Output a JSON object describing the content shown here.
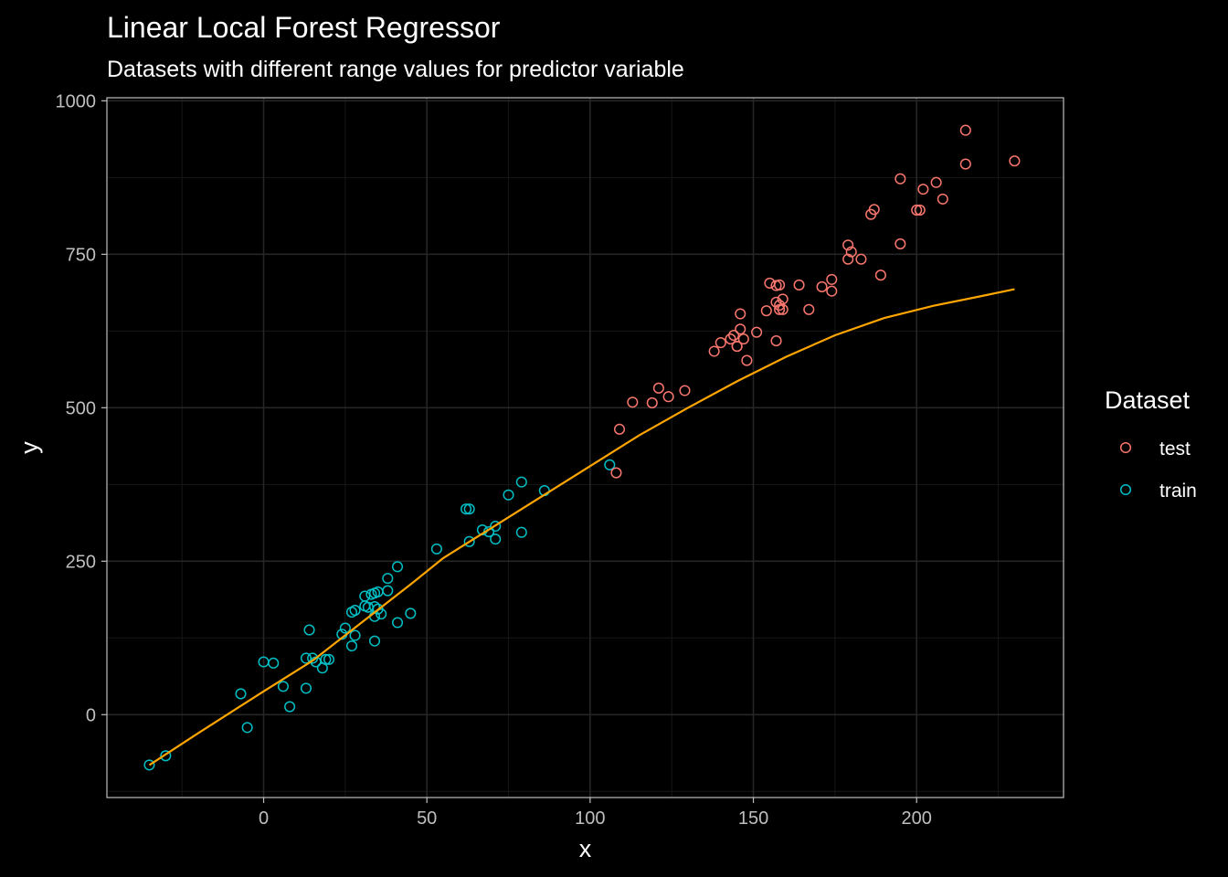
{
  "chart_data": {
    "type": "scatter",
    "title": "Linear Local Forest Regressor",
    "subtitle": "Datasets with different range values for predictor variable",
    "xlabel": "x",
    "ylabel": "y",
    "xlim": [
      -48,
      245
    ],
    "ylim": [
      -135,
      1005
    ],
    "x_ticks": [
      0,
      50,
      100,
      150,
      200
    ],
    "x_tick_labels": [
      "0",
      "50",
      "100",
      "150",
      "200"
    ],
    "y_ticks": [
      0,
      250,
      500,
      750,
      1000
    ],
    "y_tick_labels": [
      "0",
      "250",
      "500",
      "750",
      "1000"
    ],
    "x_minor_ticks": [
      -25,
      25,
      75,
      125,
      175,
      225
    ],
    "y_minor_ticks": [
      125,
      375,
      625,
      875,
      -125
    ],
    "grid": true,
    "legend": {
      "title": "Dataset",
      "position": "right",
      "entries": [
        {
          "label": "test",
          "color": "#F8766D"
        },
        {
          "label": "train",
          "color": "#00BFC4"
        }
      ]
    },
    "series": [
      {
        "name": "train",
        "kind": "points",
        "color": "#00BFC4",
        "points": [
          [
            -35,
            -82
          ],
          [
            -30,
            -67
          ],
          [
            -7,
            34
          ],
          [
            -5,
            -21
          ],
          [
            0,
            86
          ],
          [
            3,
            84
          ],
          [
            6,
            46
          ],
          [
            8,
            13
          ],
          [
            13,
            92
          ],
          [
            13,
            43
          ],
          [
            14,
            138
          ],
          [
            15,
            92
          ],
          [
            16,
            86
          ],
          [
            18,
            76
          ],
          [
            19,
            90
          ],
          [
            20,
            90
          ],
          [
            24,
            131
          ],
          [
            25,
            141
          ],
          [
            27,
            167
          ],
          [
            27,
            112
          ],
          [
            28,
            170
          ],
          [
            28,
            129
          ],
          [
            31,
            193
          ],
          [
            31,
            177
          ],
          [
            32,
            175
          ],
          [
            33,
            196
          ],
          [
            34,
            198
          ],
          [
            34,
            120
          ],
          [
            34,
            176
          ],
          [
            34,
            160
          ],
          [
            35,
            172
          ],
          [
            35,
            200
          ],
          [
            36,
            164
          ],
          [
            38,
            222
          ],
          [
            38,
            202
          ],
          [
            41,
            241
          ],
          [
            41,
            150
          ],
          [
            45,
            165
          ],
          [
            53,
            270
          ],
          [
            62,
            335
          ],
          [
            63,
            335
          ],
          [
            63,
            282
          ],
          [
            67,
            301
          ],
          [
            69,
            298
          ],
          [
            71,
            286
          ],
          [
            71,
            307
          ],
          [
            75,
            358
          ],
          [
            79,
            379
          ],
          [
            79,
            297
          ],
          [
            86,
            365
          ],
          [
            106,
            407
          ]
        ]
      },
      {
        "name": "test",
        "kind": "points",
        "color": "#F8766D",
        "points": [
          [
            108,
            394
          ],
          [
            109,
            465
          ],
          [
            113,
            509
          ],
          [
            119,
            508
          ],
          [
            121,
            532
          ],
          [
            124,
            518
          ],
          [
            129,
            528
          ],
          [
            138,
            592
          ],
          [
            140,
            606
          ],
          [
            143,
            612
          ],
          [
            144,
            618
          ],
          [
            145,
            600
          ],
          [
            145,
            600
          ],
          [
            146,
            628
          ],
          [
            146,
            653
          ],
          [
            147,
            612
          ],
          [
            148,
            577
          ],
          [
            151,
            623
          ],
          [
            154,
            658
          ],
          [
            155,
            703
          ],
          [
            157,
            672
          ],
          [
            157,
            699
          ],
          [
            157,
            609
          ],
          [
            158,
            660
          ],
          [
            158,
            700
          ],
          [
            158,
            667
          ],
          [
            159,
            677
          ],
          [
            159,
            660
          ],
          [
            164,
            700
          ],
          [
            167,
            660
          ],
          [
            171,
            697
          ],
          [
            174,
            709
          ],
          [
            174,
            690
          ],
          [
            179,
            765
          ],
          [
            179,
            742
          ],
          [
            180,
            754
          ],
          [
            183,
            742
          ],
          [
            186,
            815
          ],
          [
            187,
            823
          ],
          [
            189,
            716
          ],
          [
            195,
            767
          ],
          [
            195,
            873
          ],
          [
            200,
            822
          ],
          [
            201,
            822
          ],
          [
            202,
            856
          ],
          [
            206,
            867
          ],
          [
            208,
            840
          ],
          [
            215,
            897
          ],
          [
            215,
            952
          ],
          [
            230,
            902
          ]
        ]
      },
      {
        "kind": "line",
        "color": "#FFA500",
        "points": [
          [
            -35,
            -82
          ],
          [
            -20,
            -30
          ],
          [
            0,
            38
          ],
          [
            15,
            88
          ],
          [
            30,
            150
          ],
          [
            45,
            212
          ],
          [
            55,
            255
          ],
          [
            70,
            305
          ],
          [
            85,
            355
          ],
          [
            100,
            405
          ],
          [
            115,
            455
          ],
          [
            130,
            500
          ],
          [
            145,
            543
          ],
          [
            160,
            583
          ],
          [
            175,
            618
          ],
          [
            190,
            646
          ],
          [
            205,
            666
          ],
          [
            220,
            682
          ],
          [
            230,
            693
          ]
        ]
      }
    ]
  }
}
